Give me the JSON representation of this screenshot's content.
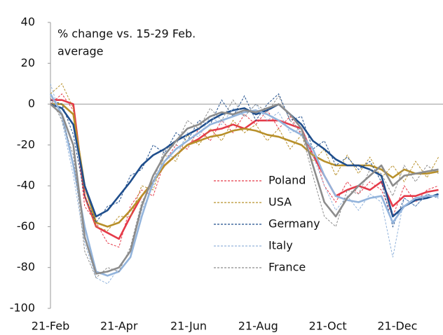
{
  "chart_data": {
    "type": "line",
    "axis_note": [
      "% change vs. 15-29 Feb.",
      "average"
    ],
    "x": [
      0,
      10,
      20,
      30,
      40,
      50,
      60,
      70,
      80,
      90,
      100,
      110,
      120,
      130,
      140,
      150,
      160,
      170,
      180,
      190,
      200,
      210,
      220,
      230,
      240,
      250,
      260,
      270,
      280,
      290,
      300,
      310,
      320,
      330,
      340
    ],
    "xlim": [
      0,
      344
    ],
    "xticks": [
      {
        "value": 0,
        "label": "21-Feb"
      },
      {
        "value": 60,
        "label": "21-Apr"
      },
      {
        "value": 121,
        "label": "21-Jun"
      },
      {
        "value": 182,
        "label": "21-Aug"
      },
      {
        "value": 243,
        "label": "21-Oct"
      },
      {
        "value": 304,
        "label": "21-Dec"
      }
    ],
    "ylim": [
      -100,
      40
    ],
    "yticks": [
      40,
      20,
      0,
      -20,
      -40,
      -60,
      -80,
      -100
    ],
    "grid": false,
    "series": [
      {
        "name": "Poland",
        "color": "#e53a49",
        "values": [
          0,
          5,
          -3,
          -50,
          -58,
          -68,
          -70,
          -50,
          -42,
          -45,
          -28,
          -20,
          -22,
          -12,
          -18,
          -8,
          -14,
          -5,
          -10,
          -3,
          -12,
          -6,
          -15,
          -22,
          -40,
          -48,
          -38,
          -44,
          -38,
          -42,
          -55,
          -40,
          -48,
          -42,
          -40
        ],
        "trend": [
          2,
          2,
          0,
          -45,
          -60,
          -63,
          -66,
          -55,
          -45,
          -38,
          -30,
          -25,
          -20,
          -17,
          -13,
          -12,
          -10,
          -12,
          -8,
          -8,
          -8,
          -10,
          -12,
          -25,
          -35,
          -45,
          -42,
          -40,
          -42,
          -38,
          -50,
          -45,
          -45,
          -43,
          -42
        ]
      },
      {
        "name": "USA",
        "color": "#b8902a",
        "values": [
          5,
          10,
          -2,
          -45,
          -60,
          -62,
          -55,
          -55,
          -40,
          -42,
          -25,
          -28,
          -15,
          -20,
          -12,
          -18,
          -8,
          -14,
          -10,
          -18,
          -12,
          -22,
          -15,
          -28,
          -22,
          -35,
          -25,
          -34,
          -26,
          -36,
          -30,
          -38,
          -28,
          -36,
          -26
        ],
        "trend": [
          0,
          0,
          -5,
          -40,
          -58,
          -60,
          -58,
          -52,
          -45,
          -38,
          -30,
          -25,
          -20,
          -18,
          -16,
          -15,
          -13,
          -12,
          -13,
          -15,
          -16,
          -18,
          -20,
          -25,
          -28,
          -30,
          -30,
          -30,
          -30,
          -32,
          -36,
          -32,
          -34,
          -34,
          -33
        ]
      },
      {
        "name": "Germany",
        "color": "#1f4e8c",
        "values": [
          2,
          0,
          -15,
          -45,
          -58,
          -50,
          -48,
          -35,
          -32,
          -20,
          -24,
          -14,
          -18,
          -8,
          -10,
          2,
          -6,
          4,
          -8,
          0,
          5,
          -8,
          -6,
          -22,
          -18,
          -30,
          -26,
          -32,
          -28,
          -38,
          -60,
          -46,
          -50,
          -44,
          -46
        ],
        "trend": [
          0,
          -2,
          -10,
          -40,
          -55,
          -52,
          -45,
          -38,
          -30,
          -25,
          -22,
          -18,
          -15,
          -12,
          -8,
          -5,
          -3,
          -2,
          -5,
          -3,
          0,
          -5,
          -10,
          -18,
          -22,
          -27,
          -30,
          -30,
          -32,
          -35,
          -55,
          -50,
          -47,
          -46,
          -44
        ]
      },
      {
        "name": "Italy",
        "color": "#93b4dc",
        "values": [
          10,
          -8,
          -35,
          -68,
          -85,
          -88,
          -80,
          -72,
          -52,
          -40,
          -25,
          -26,
          -14,
          -16,
          -6,
          -10,
          -2,
          -6,
          0,
          -8,
          -4,
          -14,
          -12,
          -25,
          -40,
          -52,
          -45,
          -52,
          -44,
          -48,
          -75,
          -46,
          -50,
          -44,
          -46
        ],
        "trend": [
          5,
          -5,
          -30,
          -60,
          -82,
          -84,
          -82,
          -75,
          -55,
          -38,
          -28,
          -22,
          -18,
          -14,
          -10,
          -8,
          -6,
          -4,
          -3,
          -5,
          -8,
          -12,
          -15,
          -22,
          -35,
          -45,
          -47,
          -48,
          -46,
          -45,
          -58,
          -50,
          -46,
          -45,
          -45
        ]
      },
      {
        "name": "France",
        "color": "#8c8c8c",
        "values": [
          3,
          -8,
          -25,
          -72,
          -85,
          -80,
          -82,
          -70,
          -48,
          -38,
          -22,
          -20,
          -8,
          -12,
          -2,
          -8,
          2,
          -6,
          0,
          -4,
          4,
          -8,
          -14,
          -35,
          -55,
          -60,
          -42,
          -44,
          -32,
          -34,
          -45,
          -30,
          -38,
          -30,
          -34
        ],
        "trend": [
          0,
          -5,
          -20,
          -65,
          -83,
          -82,
          -80,
          -72,
          -50,
          -35,
          -25,
          -18,
          -12,
          -10,
          -6,
          -4,
          -5,
          -3,
          -4,
          -2,
          0,
          -5,
          -12,
          -30,
          -48,
          -55,
          -46,
          -40,
          -35,
          -30,
          -40,
          -35,
          -34,
          -33,
          -32
        ]
      }
    ]
  }
}
